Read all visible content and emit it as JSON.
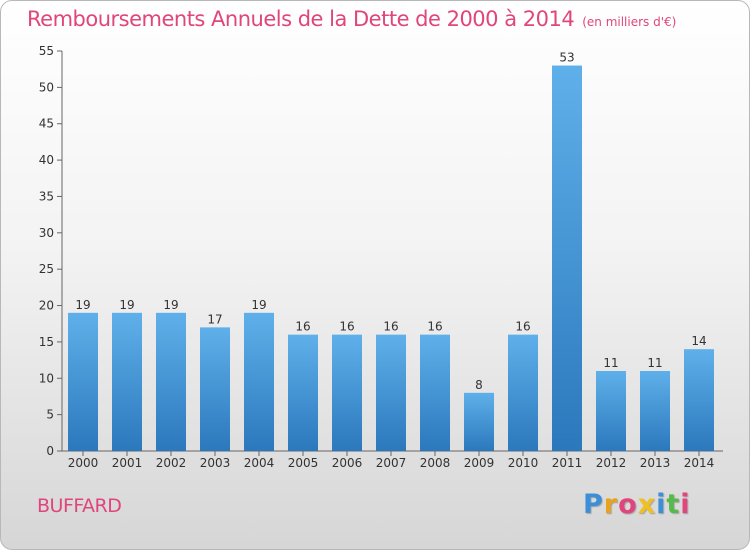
{
  "chart_data": {
    "type": "bar",
    "title": "Remboursements Annuels de la Dette de 2000 à 2014",
    "subtitle": "(en milliers d'€)",
    "categories": [
      "2000",
      "2001",
      "2002",
      "2003",
      "2004",
      "2005",
      "2006",
      "2007",
      "2008",
      "2009",
      "2010",
      "2011",
      "2012",
      "2013",
      "2014"
    ],
    "values": [
      19,
      19,
      19,
      17,
      19,
      16,
      16,
      16,
      16,
      8,
      16,
      53,
      11,
      11,
      14
    ],
    "yticks": [
      0,
      5,
      10,
      15,
      20,
      25,
      30,
      35,
      40,
      45,
      50,
      55
    ],
    "ylim": [
      0,
      55
    ],
    "xlabel": "",
    "ylabel": "",
    "grid": false,
    "bar_color": "#3f95d6"
  },
  "footer": {
    "commune": "BUFFARD",
    "logo_letters": [
      "P",
      "r",
      "o",
      "x",
      "i",
      "t",
      "i"
    ],
    "logo_colors": [
      "#3a8fd8",
      "#e8a21c",
      "#e0457b",
      "#f0c020",
      "#3a8fd8",
      "#56b94a",
      "#e0457b"
    ]
  }
}
